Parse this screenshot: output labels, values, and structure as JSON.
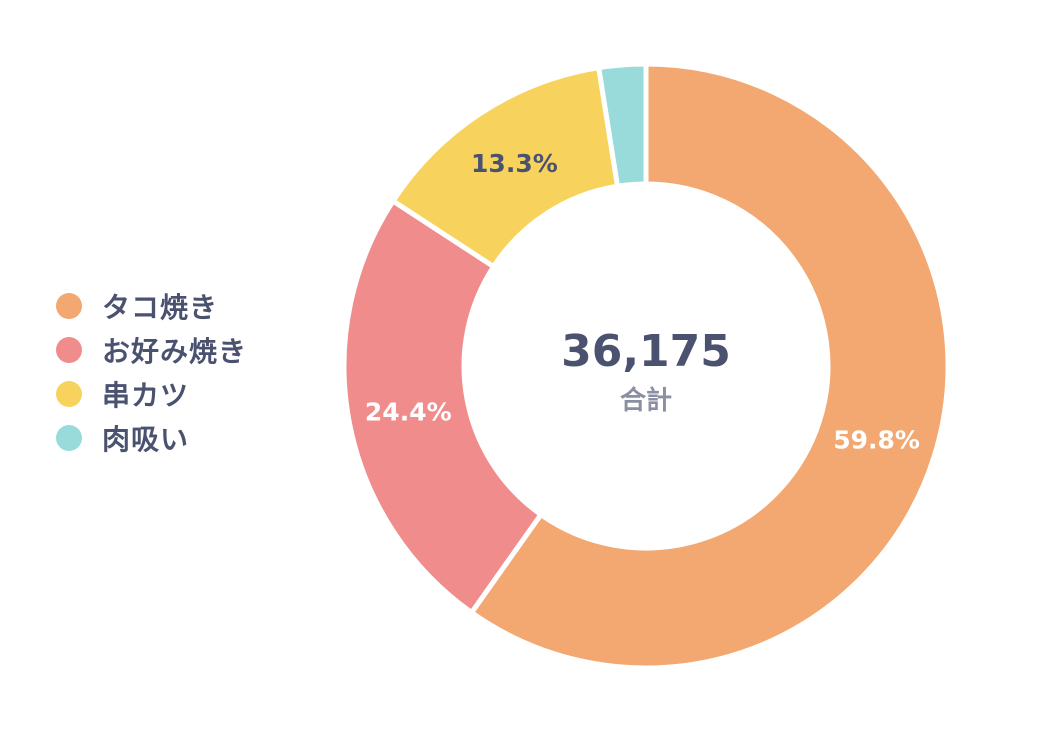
{
  "chart_data": {
    "type": "pie",
    "variant": "donut",
    "categories": [
      "タコ焼き",
      "お好み焼き",
      "串カツ",
      "肉吸い"
    ],
    "values": [
      59.8,
      24.4,
      13.3,
      2.5
    ],
    "value_labels": [
      "59.8%",
      "24.4%",
      "13.3%",
      ""
    ],
    "colors": [
      "#f2a870",
      "#f08c8c",
      "#f7d35e",
      "#99dada"
    ],
    "label_colors": [
      "#ffffff",
      "#ffffff",
      "#4a5270",
      "#4a5270"
    ],
    "center": {
      "total": "36,175",
      "caption": "合計"
    },
    "legend_position": "left",
    "start_angle_deg": 0,
    "direction": "clockwise"
  }
}
